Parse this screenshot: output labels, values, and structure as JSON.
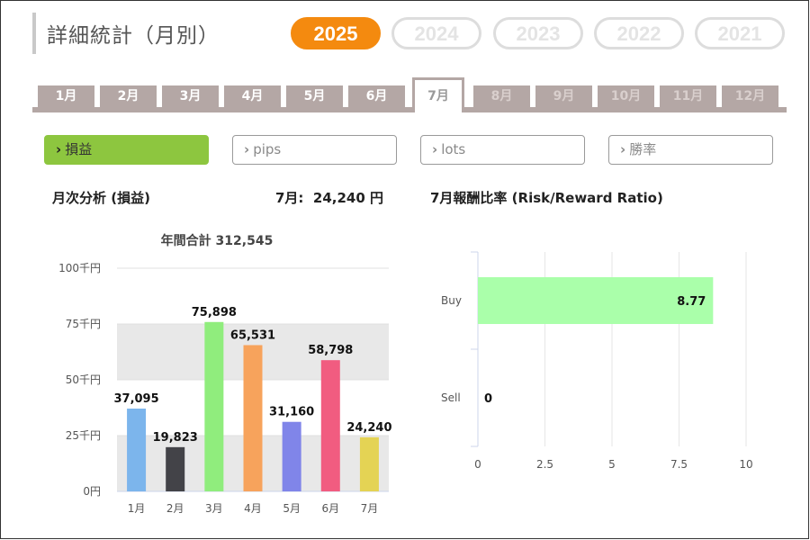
{
  "page_title": "詳細統計（月別）",
  "years": [
    "2025",
    "2024",
    "2023",
    "2022",
    "2021"
  ],
  "active_year": "2025",
  "months": [
    "1月",
    "2月",
    "3月",
    "4月",
    "5月",
    "6月",
    "7月",
    "8月",
    "9月",
    "10月",
    "11月",
    "12月"
  ],
  "active_month_index": 6,
  "metrics": [
    "損益",
    "pips",
    "lots",
    "勝率"
  ],
  "active_metric_index": 0,
  "monthly_section": {
    "title": "月次分析 (損益)",
    "current_label": "7月:",
    "current_value": "24,240 円"
  },
  "rr_section": {
    "title": "7月報酬比率 (Risk/Reward Ratio)"
  },
  "colors": {
    "accent_orange": "#f48a0f",
    "metric_green": "#8dc63f",
    "tab_gray": "#b4a7a5",
    "band_gray": "#e8e8e8"
  },
  "chart_data": [
    {
      "type": "bar",
      "title": "年間合計 312,545",
      "categories": [
        "1月",
        "2月",
        "3月",
        "4月",
        "5月",
        "6月",
        "7月"
      ],
      "values": [
        37095,
        19823,
        75898,
        65531,
        31160,
        58798,
        24240
      ],
      "data_labels": [
        "37,095",
        "19,823",
        "75,898",
        "65,531",
        "31,160",
        "58,798",
        "24,240"
      ],
      "bar_colors": [
        "#7cb5ec",
        "#434348",
        "#90ed7d",
        "#f7a35c",
        "#8085e9",
        "#f15c80",
        "#e4d354"
      ],
      "ylim": [
        0,
        100000
      ],
      "yticks": [
        0,
        25000,
        50000,
        75000,
        100000
      ],
      "ytick_labels": [
        "0円",
        "25千円",
        "50千円",
        "75千円",
        "100千円"
      ],
      "grid": true
    },
    {
      "type": "bar",
      "orientation": "horizontal",
      "categories": [
        "Buy",
        "Sell"
      ],
      "values": [
        8.77,
        0
      ],
      "data_labels": [
        "8.77",
        "0"
      ],
      "bar_color": "#aaffaa",
      "xlim": [
        0,
        10
      ],
      "xticks": [
        0,
        2.5,
        5,
        7.5,
        10
      ],
      "xtick_labels": [
        "0",
        "2.5",
        "5",
        "7.5",
        "10"
      ],
      "grid": true
    }
  ]
}
